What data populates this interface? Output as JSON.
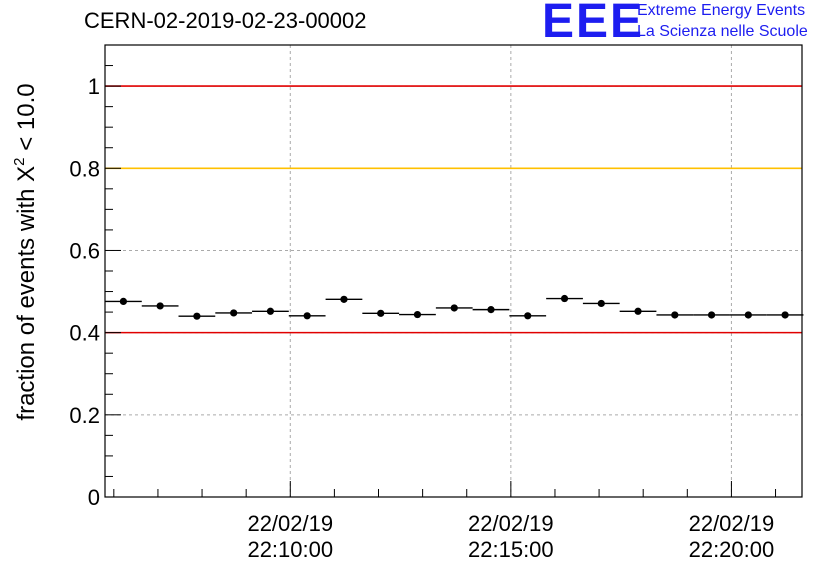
{
  "header": {
    "title": "CERN-02-2019-02-23-00002",
    "logo_mark": "EEE",
    "logo_line1": "Extreme Energy Events",
    "logo_line2": "La Scienza nelle Scuole"
  },
  "chart_data": {
    "type": "scatter",
    "title": "CERN-02-2019-02-23-00002",
    "xlabel": "",
    "ylabel_prefix": "fraction of events with ",
    "ylabel_symbol": "X",
    "ylabel_sup": "2",
    "ylabel_suffix": " < 10.0",
    "ylim": [
      0,
      1.1
    ],
    "yticks": [
      0,
      0.2,
      0.4,
      0.6,
      0.8,
      1
    ],
    "ytick_labels": [
      "0",
      "0.2",
      "0.4",
      "0.6",
      "0.8",
      "1"
    ],
    "xlim_minutes": [
      1325.8,
      1341.6
    ],
    "xticks_minutes": [
      1330,
      1335,
      1340
    ],
    "xtick_labels": [
      {
        "date": "22/02/19",
        "time": "22:10:00"
      },
      {
        "date": "22/02/19",
        "time": "22:15:00"
      },
      {
        "date": "22/02/19",
        "time": "22:20:00"
      }
    ],
    "grid": true,
    "reference_lines": [
      {
        "y": 1.0,
        "color": "#e00000"
      },
      {
        "y": 0.8,
        "color": "#ffc000"
      },
      {
        "y": 0.4,
        "color": "#e00000"
      }
    ],
    "series": [
      {
        "name": "fraction",
        "bin_width_minutes": 0.833,
        "x": [
          1326.217,
          1327.05,
          1327.883,
          1328.717,
          1329.55,
          1330.383,
          1331.217,
          1332.05,
          1332.883,
          1333.717,
          1334.55,
          1335.383,
          1336.217,
          1337.05,
          1337.883,
          1338.717,
          1339.55,
          1340.383,
          1341.217
        ],
        "values": [
          0.476,
          0.465,
          0.44,
          0.448,
          0.452,
          0.441,
          0.481,
          0.447,
          0.444,
          0.46,
          0.456,
          0.441,
          0.483,
          0.471,
          0.452,
          0.443,
          0.443,
          0.443,
          0.443
        ]
      }
    ]
  }
}
